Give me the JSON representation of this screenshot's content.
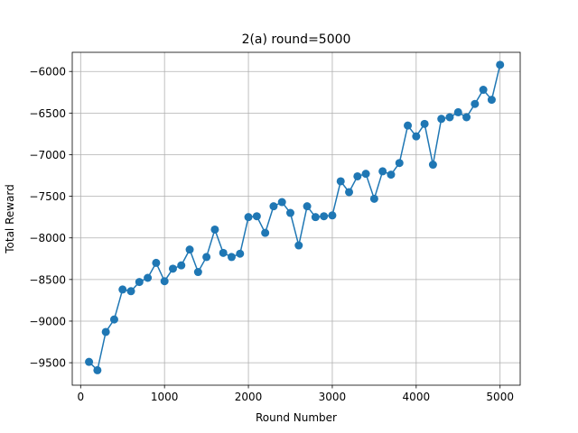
{
  "chart_data": {
    "type": "line",
    "title": "2(a)  round=5000",
    "xlabel": "Round Number",
    "ylabel": "Total Reward",
    "xlim": [
      -100,
      5240
    ],
    "ylim": [
      -9770,
      -5770
    ],
    "xticks": [
      0,
      1000,
      2000,
      3000,
      4000,
      5000
    ],
    "yticks": [
      -9500,
      -9000,
      -8500,
      -8000,
      -7500,
      -7000,
      -6500,
      -6000
    ],
    "grid": true,
    "marker": "circle",
    "color": "#1f77b4",
    "series": [
      {
        "x": [
          100,
          200,
          300,
          400,
          500,
          600,
          700,
          800,
          900,
          1000,
          1100,
          1200,
          1300,
          1400,
          1500,
          1600,
          1700,
          1800,
          1900,
          2000,
          2100,
          2200,
          2300,
          2400,
          2500,
          2600,
          2700,
          2800,
          2900,
          3000,
          3100,
          3200,
          3300,
          3400,
          3500,
          3600,
          3700,
          3800,
          3900,
          4000,
          4100,
          4200,
          4300,
          4400,
          4500,
          4600,
          4700,
          4800,
          4900,
          5000
        ],
        "y": [
          -9490,
          -9590,
          -9130,
          -8980,
          -8620,
          -8640,
          -8530,
          -8480,
          -8300,
          -8520,
          -8370,
          -8330,
          -8140,
          -8410,
          -8230,
          -7900,
          -8180,
          -8230,
          -8190,
          -7750,
          -7740,
          -7940,
          -7620,
          -7570,
          -7700,
          -8090,
          -7620,
          -7750,
          -7740,
          -7730,
          -7320,
          -7450,
          -7260,
          -7230,
          -7530,
          -7200,
          -7240,
          -7100,
          -6650,
          -6780,
          -6630,
          -7120,
          -6570,
          -6550,
          -6490,
          -6550,
          -6390,
          -6220,
          -6340,
          -5920
        ]
      }
    ]
  }
}
